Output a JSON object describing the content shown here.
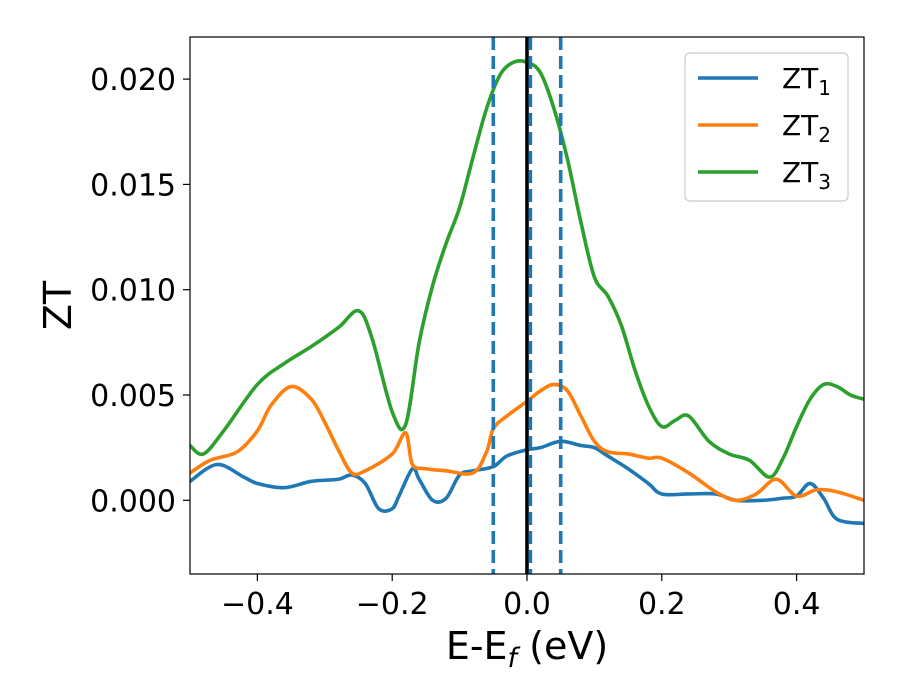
{
  "chart_data": {
    "type": "line",
    "xlabel": "E-E_f (eV)",
    "xlabel_parts": {
      "base": "E-E",
      "sub": "f",
      "unit": " (eV)"
    },
    "ylabel": "ZT",
    "xlim": [
      -0.5,
      0.5
    ],
    "ylim": [
      -0.0035,
      0.022
    ],
    "xticks": [
      -0.4,
      -0.2,
      0.0,
      0.2,
      0.4
    ],
    "xtick_labels": [
      "−0.4",
      "−0.2",
      "0.0",
      "0.2",
      "0.4"
    ],
    "yticks": [
      0.0,
      0.005,
      0.01,
      0.015,
      0.02
    ],
    "ytick_labels": [
      "0.000",
      "0.005",
      "0.010",
      "0.015",
      "0.020"
    ],
    "grid": false,
    "legend_position": "top-right",
    "vlines": [
      {
        "x": -0.05,
        "color": "#1f77b4",
        "style": "dashed"
      },
      {
        "x": 0.0,
        "color": "#000000",
        "style": "solid"
      },
      {
        "x": 0.005,
        "color": "#1f77b4",
        "style": "dashed"
      },
      {
        "x": 0.05,
        "color": "#1f77b4",
        "style": "dashed"
      }
    ],
    "series": [
      {
        "name": "ZT_1",
        "label_base": "ZT",
        "label_sub": "1",
        "color": "#1f77b4",
        "x": [
          -0.5,
          -0.46,
          -0.42,
          -0.4,
          -0.36,
          -0.32,
          -0.28,
          -0.26,
          -0.24,
          -0.22,
          -0.2,
          -0.19,
          -0.17,
          -0.16,
          -0.14,
          -0.12,
          -0.1,
          -0.08,
          -0.05,
          -0.03,
          0.0,
          0.02,
          0.05,
          0.08,
          0.1,
          0.12,
          0.15,
          0.18,
          0.2,
          0.24,
          0.28,
          0.31,
          0.35,
          0.38,
          0.4,
          0.42,
          0.44,
          0.46,
          0.5
        ],
        "y": [
          0.0009,
          0.0017,
          0.0011,
          0.0008,
          0.0006,
          0.0009,
          0.001,
          0.0012,
          0.0008,
          -0.0004,
          -0.0004,
          0.0002,
          0.0015,
          0.001,
          0.0,
          0.0001,
          0.0012,
          0.0014,
          0.0016,
          0.0021,
          0.0024,
          0.0025,
          0.0028,
          0.0026,
          0.0025,
          0.0021,
          0.0015,
          0.0008,
          0.0003,
          0.0003,
          0.0003,
          0.0,
          0.0,
          0.0001,
          0.0002,
          0.0008,
          0.0001,
          -0.0009,
          -0.0011
        ]
      },
      {
        "name": "ZT_2",
        "label_base": "ZT",
        "label_sub": "2",
        "color": "#ff7f0e",
        "x": [
          -0.5,
          -0.47,
          -0.43,
          -0.4,
          -0.38,
          -0.35,
          -0.32,
          -0.3,
          -0.28,
          -0.26,
          -0.24,
          -0.2,
          -0.18,
          -0.17,
          -0.15,
          -0.12,
          -0.08,
          -0.06,
          -0.05,
          -0.03,
          0.0,
          0.02,
          0.04,
          0.06,
          0.08,
          0.1,
          0.12,
          0.15,
          0.18,
          0.2,
          0.24,
          0.28,
          0.31,
          0.34,
          0.37,
          0.4,
          0.43,
          0.46,
          0.5
        ],
        "y": [
          0.0013,
          0.0019,
          0.0023,
          0.0033,
          0.0045,
          0.0054,
          0.0048,
          0.0037,
          0.0024,
          0.0013,
          0.0014,
          0.0022,
          0.0032,
          0.0017,
          0.0015,
          0.0014,
          0.0013,
          0.0023,
          0.0034,
          0.004,
          0.0047,
          0.0052,
          0.0055,
          0.0052,
          0.004,
          0.0028,
          0.0023,
          0.0022,
          0.002,
          0.002,
          0.0013,
          0.0004,
          0.0,
          0.0003,
          0.001,
          0.0002,
          0.0005,
          0.0004,
          0.0
        ]
      },
      {
        "name": "ZT_3",
        "label_base": "ZT",
        "label_sub": "3",
        "color": "#2ca02c",
        "x": [
          -0.5,
          -0.48,
          -0.45,
          -0.4,
          -0.36,
          -0.32,
          -0.28,
          -0.25,
          -0.23,
          -0.2,
          -0.18,
          -0.16,
          -0.14,
          -0.12,
          -0.1,
          -0.08,
          -0.06,
          -0.04,
          -0.02,
          0.0,
          0.02,
          0.04,
          0.06,
          0.08,
          0.1,
          0.12,
          0.14,
          0.16,
          0.18,
          0.2,
          0.22,
          0.24,
          0.27,
          0.3,
          0.33,
          0.36,
          0.38,
          0.4,
          0.42,
          0.44,
          0.46,
          0.48,
          0.5
        ],
        "y": [
          0.0026,
          0.0022,
          0.0033,
          0.0055,
          0.0065,
          0.0073,
          0.0082,
          0.009,
          0.0077,
          0.0042,
          0.0036,
          0.0075,
          0.0102,
          0.0122,
          0.0139,
          0.0163,
          0.0186,
          0.0202,
          0.0208,
          0.0208,
          0.0203,
          0.0186,
          0.0162,
          0.0132,
          0.0106,
          0.0097,
          0.0083,
          0.0062,
          0.0045,
          0.0035,
          0.0038,
          0.004,
          0.0028,
          0.0022,
          0.0019,
          0.0011,
          0.002,
          0.0035,
          0.0048,
          0.0055,
          0.0054,
          0.005,
          0.0048
        ]
      }
    ]
  }
}
